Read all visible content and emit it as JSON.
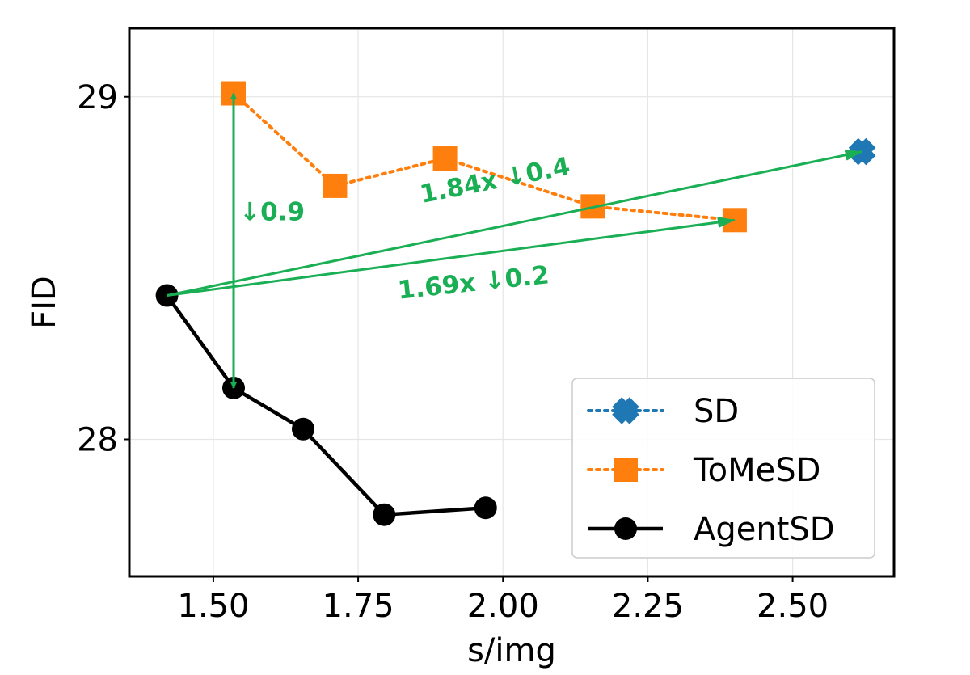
{
  "chart_data": {
    "type": "line",
    "xlabel": "s/img",
    "ylabel": "FID",
    "xlim": [
      1.355,
      2.675
    ],
    "ylim": [
      27.6,
      29.2
    ],
    "xticks": [
      1.5,
      1.75,
      2.0,
      2.25,
      2.5
    ],
    "xtick_labels": [
      "1.50",
      "1.75",
      "2.00",
      "2.25",
      "2.50"
    ],
    "yticks": [
      28,
      29
    ],
    "ytick_labels": [
      "28",
      "29"
    ],
    "grid": true,
    "legend_position": "bottom-right",
    "series": [
      {
        "name": "SD",
        "color": "#1f77b4",
        "marker": "x",
        "linestyle": "dotted",
        "points": [
          [
            2.62,
            28.84
          ]
        ]
      },
      {
        "name": "ToMeSD",
        "color": "#ff7f0e",
        "marker": "square",
        "linestyle": "dotted",
        "points": [
          [
            1.535,
            29.01
          ],
          [
            1.71,
            28.74
          ],
          [
            1.9,
            28.82
          ],
          [
            2.155,
            28.68
          ],
          [
            2.4,
            28.64
          ]
        ]
      },
      {
        "name": "AgentSD",
        "color": "#000000",
        "marker": "circle",
        "linestyle": "solid",
        "points": [
          [
            1.42,
            28.42
          ],
          [
            1.535,
            28.15
          ],
          [
            1.655,
            28.03
          ],
          [
            1.795,
            27.78
          ],
          [
            1.97,
            27.8
          ]
        ]
      }
    ],
    "annotations": [
      {
        "text": "↓0.9",
        "color": "#1aaf54",
        "from": [
          1.535,
          29.01
        ],
        "to": [
          1.535,
          28.15
        ],
        "type": "double-arrow",
        "text_at": [
          1.545,
          28.64
        ],
        "rotation": 0
      },
      {
        "text": "1.84x ↓0.4",
        "color": "#1aaf54",
        "from": [
          1.42,
          28.42
        ],
        "to": [
          2.62,
          28.84
        ],
        "type": "arrow",
        "text_at": [
          1.86,
          28.69
        ],
        "rotation": -11
      },
      {
        "text": "1.69x ↓0.2",
        "color": "#1aaf54",
        "from": [
          1.42,
          28.42
        ],
        "to": [
          2.4,
          28.64
        ],
        "type": "arrow",
        "text_at": [
          1.82,
          28.41
        ],
        "rotation": -6
      }
    ]
  }
}
